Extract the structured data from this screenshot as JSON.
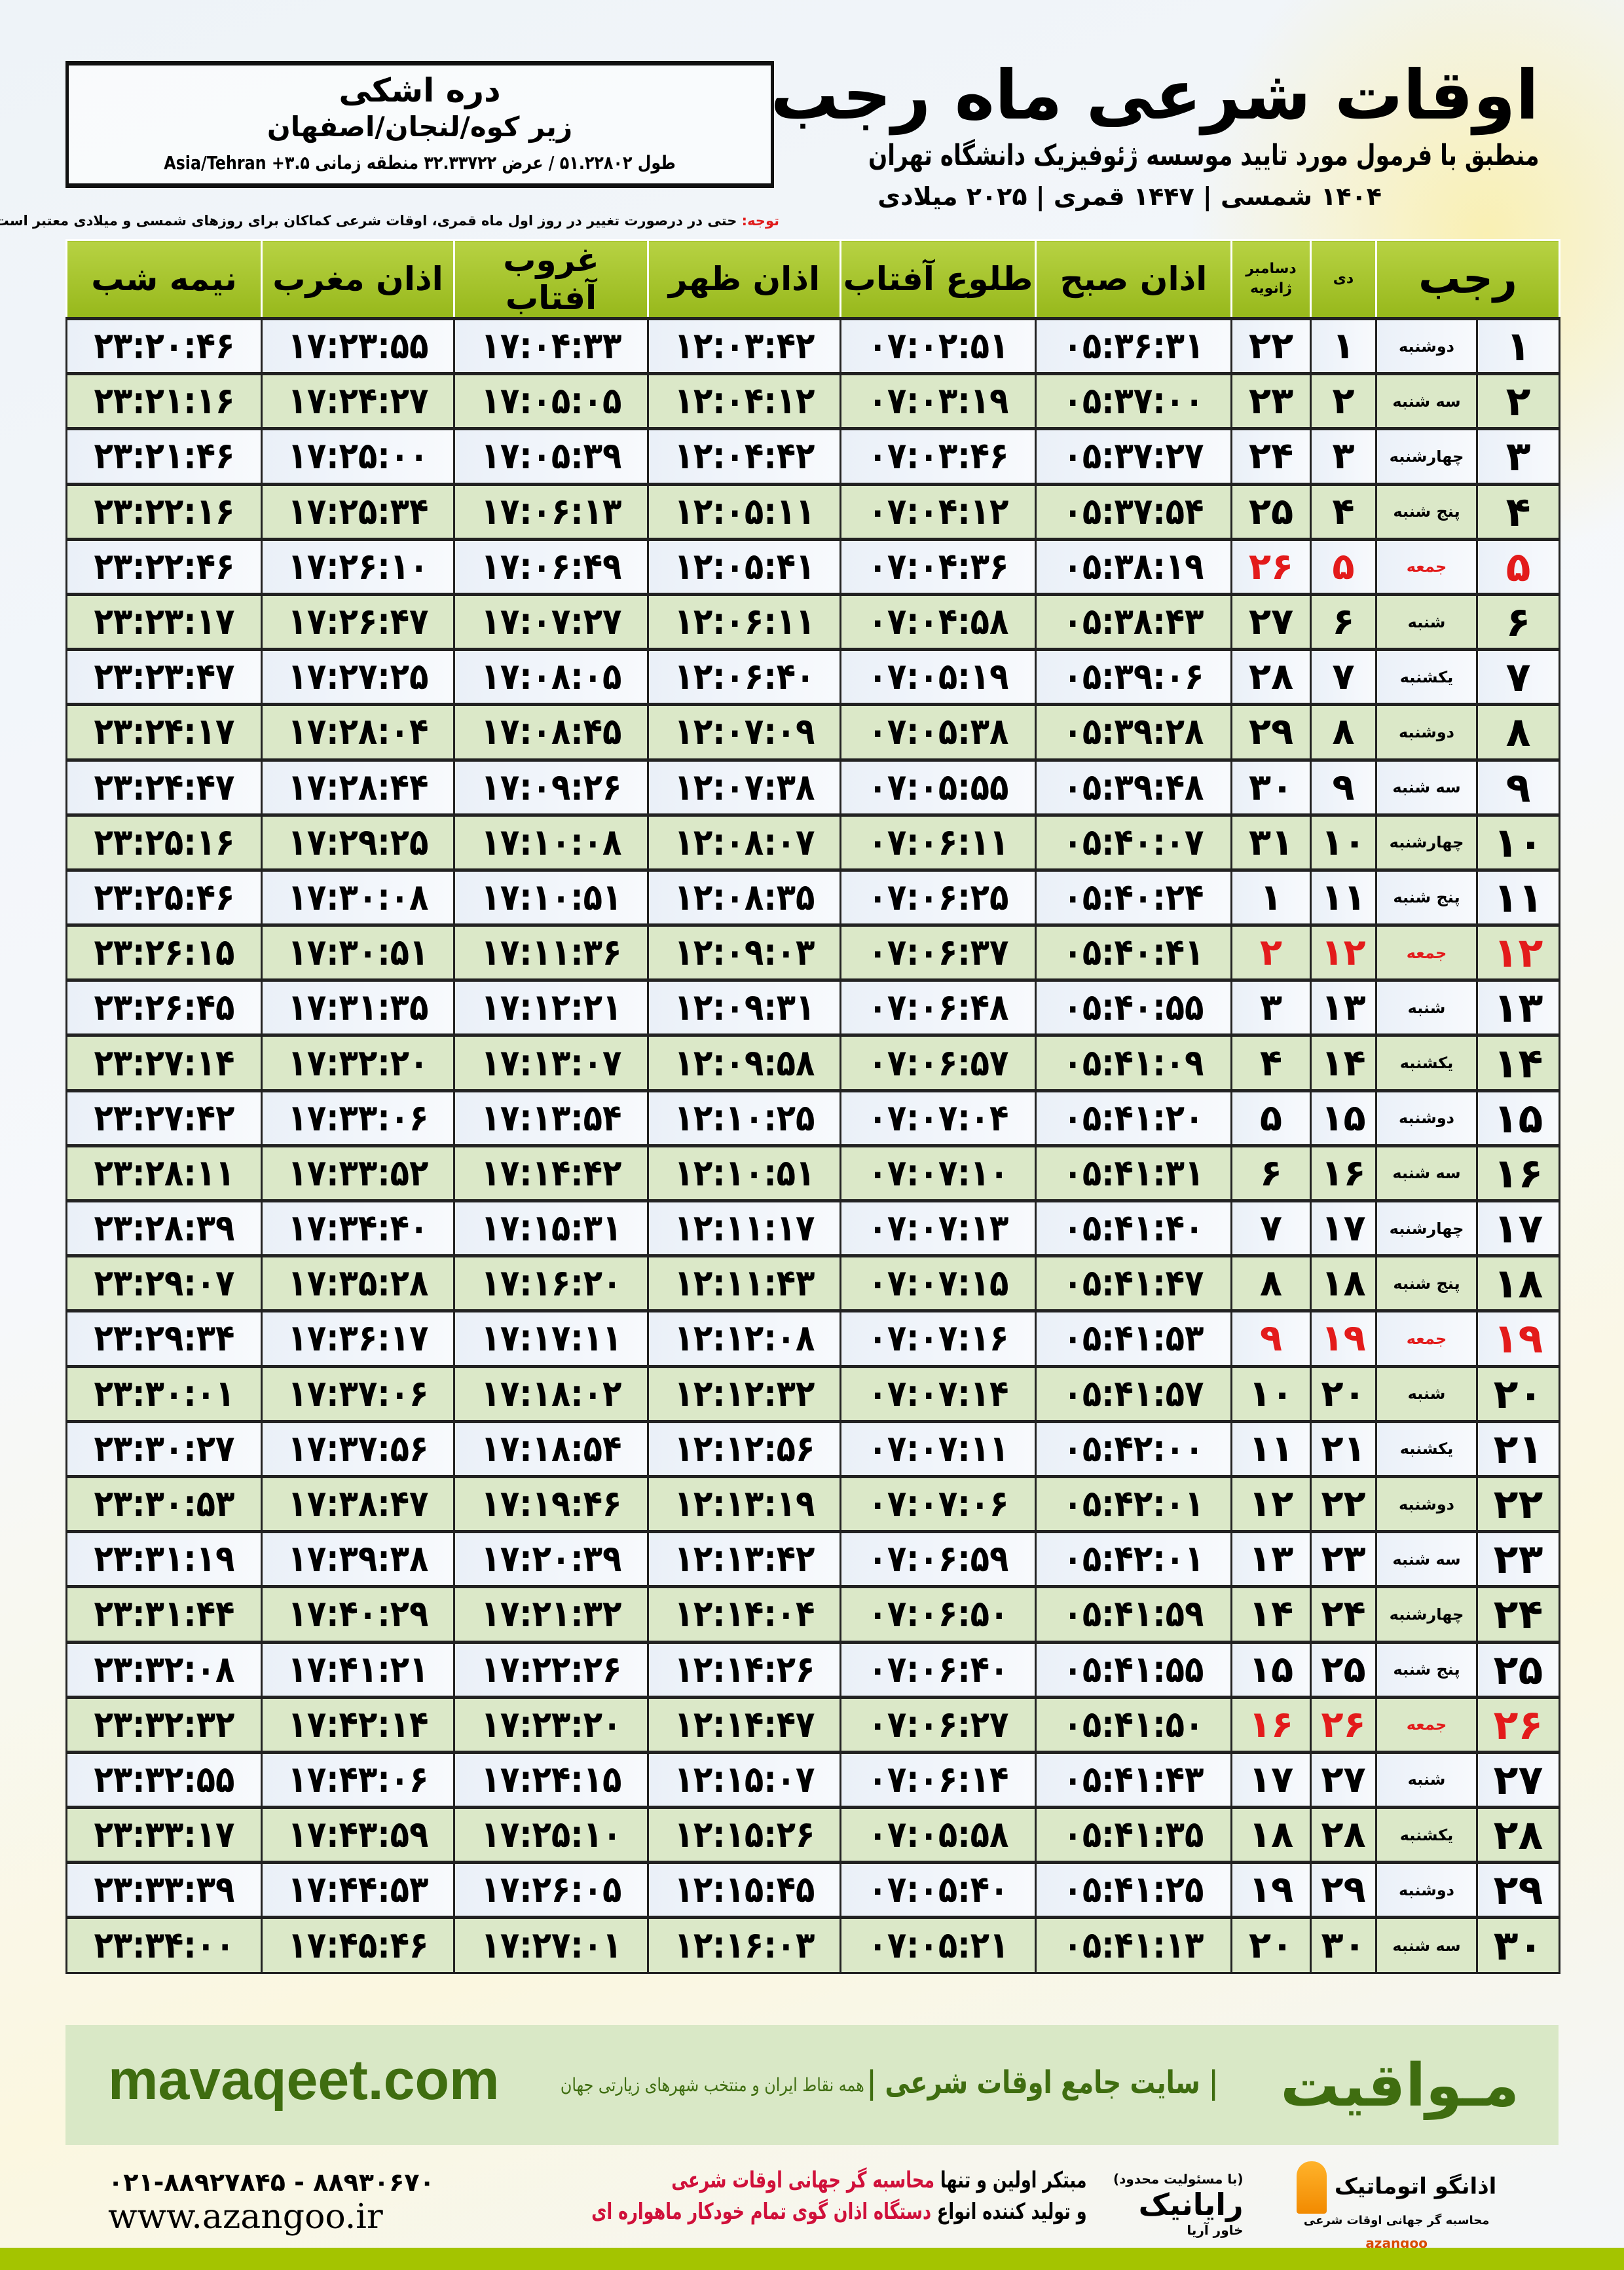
{
  "header": {
    "title": "اوقات شرعی ماه رجب",
    "subtitle": "منطبق با فرمول مورد تایید موسسه ژئوفیزیک دانشگاه تهران",
    "dates": "۱۴۰۴ شمسی | ۱۴۴۷ قمری | ۲۰۲۵ میلادی"
  },
  "location": {
    "name": "دره اشکی",
    "region": "زیر کوه/لنجان/اصفهان",
    "coords": "طول ۵۱.۲۲۸۰۲ / عرض ۳۲.۳۳۷۲۲ منطقه زمانی ۳.۵+ Asia/Tehran"
  },
  "note": {
    "label": "توجه:",
    "text": " حتی در درصورت تغییر در روز اول ماه قمری، اوقات شرعی کماکان برای روزهای شمسی و میلادی معتبر است."
  },
  "table": {
    "headers": {
      "month": "رجب",
      "dey": "دی",
      "gregorian_top": "دسامبر",
      "gregorian_bottom": "ژانویه",
      "sobh": "اذان صبح",
      "tolu": "طلوع آفتاب",
      "zohr": "اذان ظهر",
      "ghoroob": "غروب آفتاب",
      "maghreb": "اذان مغرب",
      "nimeh": "نیمه شب"
    },
    "holiday_color": "#e31b1b",
    "rows": [
      [
        "۱",
        "دوشنبه",
        "۱",
        "۲۲",
        "۰۵:۳۶:۳۱",
        "۰۷:۰۲:۵۱",
        "۱۲:۰۳:۴۲",
        "۱۷:۰۴:۳۳",
        "۱۷:۲۳:۵۵",
        "۲۳:۲۰:۴۶"
      ],
      [
        "۲",
        "سه شنبه",
        "۲",
        "۲۳",
        "۰۵:۳۷:۰۰",
        "۰۷:۰۳:۱۹",
        "۱۲:۰۴:۱۲",
        "۱۷:۰۵:۰۵",
        "۱۷:۲۴:۲۷",
        "۲۳:۲۱:۱۶"
      ],
      [
        "۳",
        "چهارشنبه",
        "۳",
        "۲۴",
        "۰۵:۳۷:۲۷",
        "۰۷:۰۳:۴۶",
        "۱۲:۰۴:۴۲",
        "۱۷:۰۵:۳۹",
        "۱۷:۲۵:۰۰",
        "۲۳:۲۱:۴۶"
      ],
      [
        "۴",
        "پنج شنبه",
        "۴",
        "۲۵",
        "۰۵:۳۷:۵۴",
        "۰۷:۰۴:۱۲",
        "۱۲:۰۵:۱۱",
        "۱۷:۰۶:۱۳",
        "۱۷:۲۵:۳۴",
        "۲۳:۲۲:۱۶"
      ],
      [
        "۵",
        "جمعه",
        "۵",
        "۲۶",
        "۰۵:۳۸:۱۹",
        "۰۷:۰۴:۳۶",
        "۱۲:۰۵:۴۱",
        "۱۷:۰۶:۴۹",
        "۱۷:۲۶:۱۰",
        "۲۳:۲۲:۴۶"
      ],
      [
        "۶",
        "شنبه",
        "۶",
        "۲۷",
        "۰۵:۳۸:۴۳",
        "۰۷:۰۴:۵۸",
        "۱۲:۰۶:۱۱",
        "۱۷:۰۷:۲۷",
        "۱۷:۲۶:۴۷",
        "۲۳:۲۳:۱۷"
      ],
      [
        "۷",
        "یکشنبه",
        "۷",
        "۲۸",
        "۰۵:۳۹:۰۶",
        "۰۷:۰۵:۱۹",
        "۱۲:۰۶:۴۰",
        "۱۷:۰۸:۰۵",
        "۱۷:۲۷:۲۵",
        "۲۳:۲۳:۴۷"
      ],
      [
        "۸",
        "دوشنبه",
        "۸",
        "۲۹",
        "۰۵:۳۹:۲۸",
        "۰۷:۰۵:۳۸",
        "۱۲:۰۷:۰۹",
        "۱۷:۰۸:۴۵",
        "۱۷:۲۸:۰۴",
        "۲۳:۲۴:۱۷"
      ],
      [
        "۹",
        "سه شنبه",
        "۹",
        "۳۰",
        "۰۵:۳۹:۴۸",
        "۰۷:۰۵:۵۵",
        "۱۲:۰۷:۳۸",
        "۱۷:۰۹:۲۶",
        "۱۷:۲۸:۴۴",
        "۲۳:۲۴:۴۷"
      ],
      [
        "۱۰",
        "چهارشنبه",
        "۱۰",
        "۳۱",
        "۰۵:۴۰:۰۷",
        "۰۷:۰۶:۱۱",
        "۱۲:۰۸:۰۷",
        "۱۷:۱۰:۰۸",
        "۱۷:۲۹:۲۵",
        "۲۳:۲۵:۱۶"
      ],
      [
        "۱۱",
        "پنج شنبه",
        "۱۱",
        "۱",
        "۰۵:۴۰:۲۴",
        "۰۷:۰۶:۲۵",
        "۱۲:۰۸:۳۵",
        "۱۷:۱۰:۵۱",
        "۱۷:۳۰:۰۸",
        "۲۳:۲۵:۴۶"
      ],
      [
        "۱۲",
        "جمعه",
        "۱۲",
        "۲",
        "۰۵:۴۰:۴۱",
        "۰۷:۰۶:۳۷",
        "۱۲:۰۹:۰۳",
        "۱۷:۱۱:۳۶",
        "۱۷:۳۰:۵۱",
        "۲۳:۲۶:۱۵"
      ],
      [
        "۱۳",
        "شنبه",
        "۱۳",
        "۳",
        "۰۵:۴۰:۵۵",
        "۰۷:۰۶:۴۸",
        "۱۲:۰۹:۳۱",
        "۱۷:۱۲:۲۱",
        "۱۷:۳۱:۳۵",
        "۲۳:۲۶:۴۵"
      ],
      [
        "۱۴",
        "یکشنبه",
        "۱۴",
        "۴",
        "۰۵:۴۱:۰۹",
        "۰۷:۰۶:۵۷",
        "۱۲:۰۹:۵۸",
        "۱۷:۱۳:۰۷",
        "۱۷:۳۲:۲۰",
        "۲۳:۲۷:۱۴"
      ],
      [
        "۱۵",
        "دوشنبه",
        "۱۵",
        "۵",
        "۰۵:۴۱:۲۰",
        "۰۷:۰۷:۰۴",
        "۱۲:۱۰:۲۵",
        "۱۷:۱۳:۵۴",
        "۱۷:۳۳:۰۶",
        "۲۳:۲۷:۴۲"
      ],
      [
        "۱۶",
        "سه شنبه",
        "۱۶",
        "۶",
        "۰۵:۴۱:۳۱",
        "۰۷:۰۷:۱۰",
        "۱۲:۱۰:۵۱",
        "۱۷:۱۴:۴۲",
        "۱۷:۳۳:۵۲",
        "۲۳:۲۸:۱۱"
      ],
      [
        "۱۷",
        "چهارشنبه",
        "۱۷",
        "۷",
        "۰۵:۴۱:۴۰",
        "۰۷:۰۷:۱۳",
        "۱۲:۱۱:۱۷",
        "۱۷:۱۵:۳۱",
        "۱۷:۳۴:۴۰",
        "۲۳:۲۸:۳۹"
      ],
      [
        "۱۸",
        "پنج شنبه",
        "۱۸",
        "۸",
        "۰۵:۴۱:۴۷",
        "۰۷:۰۷:۱۵",
        "۱۲:۱۱:۴۳",
        "۱۷:۱۶:۲۰",
        "۱۷:۳۵:۲۸",
        "۲۳:۲۹:۰۷"
      ],
      [
        "۱۹",
        "جمعه",
        "۱۹",
        "۹",
        "۰۵:۴۱:۵۳",
        "۰۷:۰۷:۱۶",
        "۱۲:۱۲:۰۸",
        "۱۷:۱۷:۱۱",
        "۱۷:۳۶:۱۷",
        "۲۳:۲۹:۳۴"
      ],
      [
        "۲۰",
        "شنبه",
        "۲۰",
        "۱۰",
        "۰۵:۴۱:۵۷",
        "۰۷:۰۷:۱۴",
        "۱۲:۱۲:۳۲",
        "۱۷:۱۸:۰۲",
        "۱۷:۳۷:۰۶",
        "۲۳:۳۰:۰۱"
      ],
      [
        "۲۱",
        "یکشنبه",
        "۲۱",
        "۱۱",
        "۰۵:۴۲:۰۰",
        "۰۷:۰۷:۱۱",
        "۱۲:۱۲:۵۶",
        "۱۷:۱۸:۵۴",
        "۱۷:۳۷:۵۶",
        "۲۳:۳۰:۲۷"
      ],
      [
        "۲۲",
        "دوشنبه",
        "۲۲",
        "۱۲",
        "۰۵:۴۲:۰۱",
        "۰۷:۰۷:۰۶",
        "۱۲:۱۳:۱۹",
        "۱۷:۱۹:۴۶",
        "۱۷:۳۸:۴۷",
        "۲۳:۳۰:۵۳"
      ],
      [
        "۲۳",
        "سه شنبه",
        "۲۳",
        "۱۳",
        "۰۵:۴۲:۰۱",
        "۰۷:۰۶:۵۹",
        "۱۲:۱۳:۴۲",
        "۱۷:۲۰:۳۹",
        "۱۷:۳۹:۳۸",
        "۲۳:۳۱:۱۹"
      ],
      [
        "۲۴",
        "چهارشنبه",
        "۲۴",
        "۱۴",
        "۰۵:۴۱:۵۹",
        "۰۷:۰۶:۵۰",
        "۱۲:۱۴:۰۴",
        "۱۷:۲۱:۳۲",
        "۱۷:۴۰:۲۹",
        "۲۳:۳۱:۴۴"
      ],
      [
        "۲۵",
        "پنج شنبه",
        "۲۵",
        "۱۵",
        "۰۵:۴۱:۵۵",
        "۰۷:۰۶:۴۰",
        "۱۲:۱۴:۲۶",
        "۱۷:۲۲:۲۶",
        "۱۷:۴۱:۲۱",
        "۲۳:۳۲:۰۸"
      ],
      [
        "۲۶",
        "جمعه",
        "۲۶",
        "۱۶",
        "۰۵:۴۱:۵۰",
        "۰۷:۰۶:۲۷",
        "۱۲:۱۴:۴۷",
        "۱۷:۲۳:۲۰",
        "۱۷:۴۲:۱۴",
        "۲۳:۳۲:۳۲"
      ],
      [
        "۲۷",
        "شنبه",
        "۲۷",
        "۱۷",
        "۰۵:۴۱:۴۳",
        "۰۷:۰۶:۱۴",
        "۱۲:۱۵:۰۷",
        "۱۷:۲۴:۱۵",
        "۱۷:۴۳:۰۶",
        "۲۳:۳۲:۵۵"
      ],
      [
        "۲۸",
        "یکشنبه",
        "۲۸",
        "۱۸",
        "۰۵:۴۱:۳۵",
        "۰۷:۰۵:۵۸",
        "۱۲:۱۵:۲۶",
        "۱۷:۲۵:۱۰",
        "۱۷:۴۳:۵۹",
        "۲۳:۳۳:۱۷"
      ],
      [
        "۲۹",
        "دوشنبه",
        "۲۹",
        "۱۹",
        "۰۵:۴۱:۲۵",
        "۰۷:۰۵:۴۰",
        "۱۲:۱۵:۴۵",
        "۱۷:۲۶:۰۵",
        "۱۷:۴۴:۵۳",
        "۲۳:۳۳:۳۹"
      ],
      [
        "۳۰",
        "سه شنبه",
        "۳۰",
        "۲۰",
        "۰۵:۴۱:۱۳",
        "۰۷:۰۵:۲۱",
        "۱۲:۱۶:۰۳",
        "۱۷:۲۷:۰۱",
        "۱۷:۴۵:۴۶",
        "۲۳:۳۴:۰۰"
      ]
    ]
  },
  "footer": {
    "brand": "مـواقیت",
    "site_desc": "| سایت جامع اوقات شرعی |",
    "site_sub": "همه نقاط ایران و منتخب شهرهای زیارتی جهان",
    "url": "mavaqeet.com",
    "phone": "۰۲۱-۸۸۹۲۷۸۴۵ - ۸۸۹۳۰۶۷۰",
    "azangoo_url": "www.azangoo.ir",
    "promo_1a": "مبتکر اولین و تنها ",
    "promo_1b": "محاسبه گر جهانی اوقات شرعی",
    "promo_2a": "و تولید کننده انواع ",
    "promo_2b": "دستگاه اذان گوی تمام خودکار ماهواره ای",
    "rayanik_tag": "(با مسئولیت محدود)",
    "rayanik": "رایانیک",
    "rayanik_sub": "خاور آریا",
    "azangoo_name": "اذانگو اتوماتیک",
    "azangoo_sub": "محاسبه گر جهانی اوقات شرعی",
    "azangoo_latin": "azangoo",
    "accent": "#3f6d10",
    "bar_color": "#a4c400"
  }
}
